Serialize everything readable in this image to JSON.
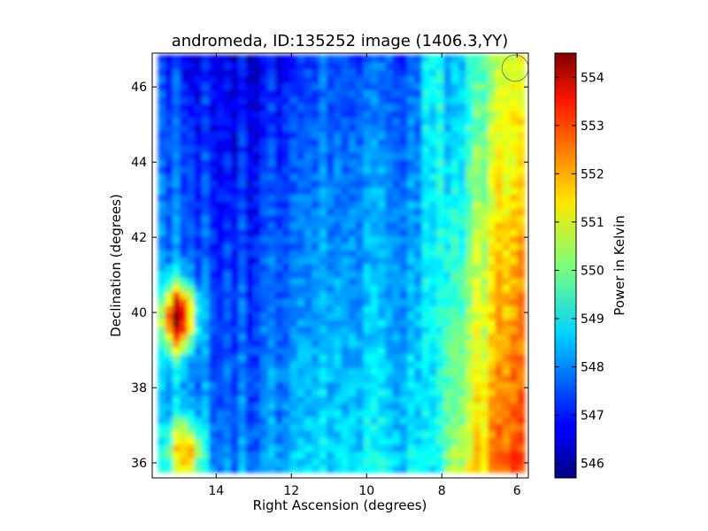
{
  "chart_data": {
    "type": "heatmap",
    "title": "andromeda, ID:135252 image (1406.3,YY)",
    "xlabel": "Right Ascension (degrees)",
    "ylabel": "Declination (degrees)",
    "xlim": [
      15.7,
      5.7
    ],
    "ylim": [
      35.6,
      46.9
    ],
    "x_ticks": [
      14,
      12,
      10,
      8,
      6
    ],
    "y_ticks": [
      36,
      38,
      40,
      42,
      44,
      46
    ],
    "x_tick_labels": [
      "14",
      "12",
      "10",
      "8",
      "6"
    ],
    "y_tick_labels": [
      "36",
      "38",
      "40",
      "42",
      "44",
      "46"
    ],
    "colorbar": {
      "label": "Power in Kelvin",
      "range": [
        545.7,
        554.5
      ],
      "ticks": [
        546,
        547,
        548,
        549,
        550,
        551,
        552,
        553,
        554
      ],
      "tick_labels": [
        "546",
        "547",
        "548",
        "549",
        "550",
        "551",
        "552",
        "553",
        "554"
      ],
      "colormap": "jet"
    },
    "ra_profile": [
      {
        "ra": 15.55,
        "value": 548.0
      },
      {
        "ra": 15.0,
        "value": 547.9
      },
      {
        "ra": 14.5,
        "value": 547.6
      },
      {
        "ra": 14.0,
        "value": 547.4
      },
      {
        "ra": 13.5,
        "value": 547.3
      },
      {
        "ra": 13.0,
        "value": 547.3
      },
      {
        "ra": 12.5,
        "value": 547.6
      },
      {
        "ra": 12.0,
        "value": 547.9
      },
      {
        "ra": 11.5,
        "value": 548.1
      },
      {
        "ra": 11.0,
        "value": 548.3
      },
      {
        "ra": 10.5,
        "value": 548.4
      },
      {
        "ra": 10.0,
        "value": 548.3
      },
      {
        "ra": 9.5,
        "value": 548.1
      },
      {
        "ra": 9.0,
        "value": 548.2
      },
      {
        "ra": 8.5,
        "value": 548.5
      },
      {
        "ra": 8.0,
        "value": 549.1
      },
      {
        "ra": 7.5,
        "value": 549.7
      },
      {
        "ra": 7.0,
        "value": 550.6
      },
      {
        "ra": 6.5,
        "value": 551.6
      },
      {
        "ra": 6.0,
        "value": 552.1
      },
      {
        "ra": 5.8,
        "value": 552.0
      }
    ],
    "hot_spots": [
      {
        "ra": 15.0,
        "dec": 39.9,
        "value": 554.2
      },
      {
        "ra": 14.8,
        "dec": 36.3,
        "value": 551.5
      }
    ],
    "circle_marker": {
      "ra": 6.05,
      "dec": 46.5,
      "radius_deg": 0.35,
      "color": "#7d8c3a"
    }
  }
}
